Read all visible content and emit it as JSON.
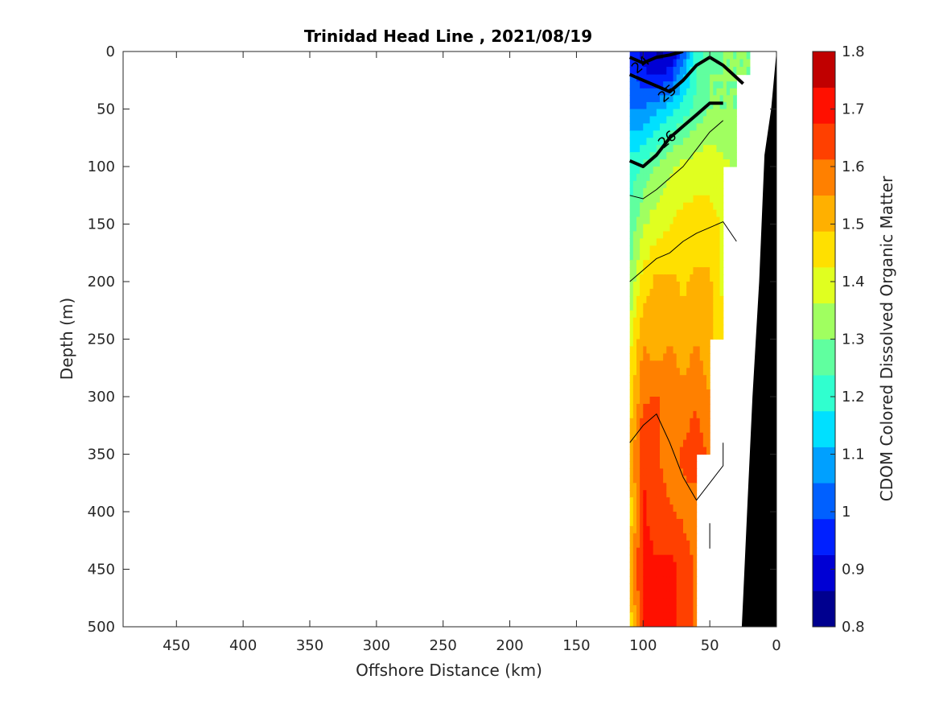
{
  "chart_data": {
    "type": "heatmap",
    "title": "Trinidad Head Line , 2021/08/19",
    "xlabel": "Offshore Distance (km)",
    "ylabel": "Depth (m)",
    "colorbar_label": "CDOM Colored Dissolved Organic Matter",
    "xlim": [
      490,
      0
    ],
    "ylim": [
      0,
      500
    ],
    "x_reversed": true,
    "y_reversed": true,
    "xticks": [
      450,
      400,
      350,
      300,
      250,
      200,
      150,
      100,
      50,
      0
    ],
    "yticks": [
      0,
      50,
      100,
      150,
      200,
      250,
      300,
      350,
      400,
      450,
      500
    ],
    "colorbar_range": [
      0.8,
      1.8
    ],
    "colorbar_ticks": [
      "0.8",
      "0.9",
      "1",
      "1.1",
      "1.2",
      "1.3",
      "1.4",
      "1.5",
      "1.6",
      "1.7",
      "1.8"
    ],
    "colormap": [
      "#00008f",
      "#0000d4",
      "#0020ff",
      "#0060ff",
      "#00a0ff",
      "#00e0ff",
      "#30ffcf",
      "#60ff9f",
      "#a0ff60",
      "#e0ff20",
      "#ffe000",
      "#ffb000",
      "#ff8000",
      "#ff4000",
      "#ff1000",
      "#c00000"
    ],
    "grid": false,
    "bathymetry_color": "#000000",
    "stations_x": [
      110,
      100,
      90,
      80,
      70,
      60,
      50,
      40,
      30,
      20
    ],
    "depths": [
      0,
      20,
      50,
      100,
      150,
      200,
      250,
      300,
      350,
      400,
      450,
      500
    ],
    "cdom_values": [
      [
        0.95,
        0.9,
        0.85,
        0.85,
        1.0,
        1.2,
        1.25,
        1.3,
        1.3,
        1.3
      ],
      [
        1.0,
        0.95,
        0.9,
        0.95,
        1.1,
        1.25,
        1.3,
        1.3,
        1.3,
        1.3
      ],
      [
        1.05,
        1.05,
        1.1,
        1.15,
        1.2,
        1.25,
        1.3,
        1.3,
        1.3,
        null
      ],
      [
        1.2,
        1.25,
        1.3,
        1.35,
        1.38,
        1.4,
        1.4,
        1.38,
        1.35,
        null
      ],
      [
        1.25,
        1.35,
        1.4,
        1.42,
        1.45,
        1.45,
        1.45,
        1.42,
        null,
        null
      ],
      [
        1.3,
        1.45,
        1.5,
        1.5,
        1.48,
        1.5,
        1.5,
        1.4,
        null,
        null
      ],
      [
        1.4,
        1.55,
        1.5,
        1.55,
        1.5,
        1.55,
        1.5,
        1.45,
        null,
        null
      ],
      [
        1.45,
        1.6,
        1.62,
        1.6,
        1.58,
        1.6,
        1.55,
        null,
        null,
        null
      ],
      [
        1.5,
        1.68,
        1.62,
        1.58,
        1.62,
        1.65,
        1.6,
        null,
        null,
        null
      ],
      [
        1.45,
        1.68,
        1.65,
        1.62,
        1.6,
        1.58,
        null,
        null,
        null,
        null
      ],
      [
        1.5,
        1.7,
        1.68,
        1.7,
        1.65,
        1.6,
        null,
        null,
        null,
        null
      ],
      [
        1.45,
        1.68,
        1.72,
        1.7,
        1.66,
        1.6,
        null,
        null,
        null,
        null
      ]
    ],
    "density_contours": [
      {
        "label": "24",
        "level": 24,
        "bold": true,
        "points": [
          [
            110,
            5
          ],
          [
            100,
            10
          ],
          [
            90,
            5
          ],
          [
            80,
            3
          ],
          [
            70,
            0
          ]
        ]
      },
      {
        "label": "25",
        "level": 25,
        "bold": true,
        "points": [
          [
            110,
            20
          ],
          [
            100,
            25
          ],
          [
            90,
            30
          ],
          [
            80,
            35
          ],
          [
            70,
            25
          ],
          [
            60,
            12
          ],
          [
            50,
            5
          ],
          [
            40,
            12
          ],
          [
            25,
            28
          ]
        ]
      },
      {
        "label": "26",
        "level": 26,
        "bold": true,
        "points": [
          [
            110,
            95
          ],
          [
            100,
            100
          ],
          [
            90,
            90
          ],
          [
            80,
            75
          ],
          [
            70,
            65
          ],
          [
            60,
            55
          ],
          [
            50,
            45
          ],
          [
            40,
            45
          ]
        ]
      },
      {
        "label": "",
        "level": 26.5,
        "bold": false,
        "points": [
          [
            110,
            125
          ],
          [
            100,
            128
          ],
          [
            90,
            120
          ],
          [
            80,
            110
          ],
          [
            70,
            100
          ],
          [
            60,
            85
          ],
          [
            50,
            70
          ],
          [
            40,
            60
          ]
        ]
      },
      {
        "label": "",
        "level": 26.7,
        "bold": false,
        "points": [
          [
            110,
            200
          ],
          [
            100,
            190
          ],
          [
            90,
            180
          ],
          [
            80,
            175
          ],
          [
            70,
            165
          ],
          [
            60,
            158
          ],
          [
            50,
            153
          ],
          [
            40,
            148
          ],
          [
            30,
            165
          ]
        ]
      },
      {
        "label": "",
        "level": 26.8,
        "bold": false,
        "points": [
          [
            110,
            340
          ],
          [
            100,
            325
          ],
          [
            90,
            315
          ],
          [
            80,
            340
          ],
          [
            70,
            370
          ],
          [
            60,
            390
          ],
          [
            50,
            375
          ],
          [
            40,
            360
          ],
          [
            40,
            340
          ]
        ]
      },
      {
        "label": "",
        "level": 26.9,
        "bold": false,
        "points": [
          [
            50,
            410
          ],
          [
            50,
            425
          ],
          [
            50,
            432
          ]
        ]
      }
    ],
    "bathymetry": [
      [
        0,
        0
      ],
      [
        4,
        50
      ],
      [
        9,
        90
      ],
      [
        13,
        200
      ],
      [
        18,
        300
      ],
      [
        22,
        400
      ],
      [
        25,
        475
      ],
      [
        26,
        500
      ],
      [
        0,
        500
      ]
    ]
  }
}
